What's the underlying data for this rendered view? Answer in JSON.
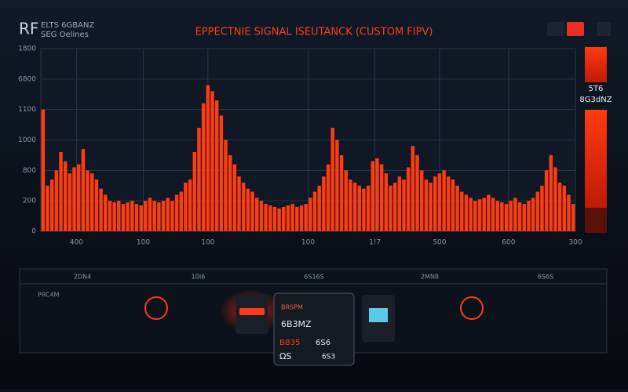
{
  "header": {
    "logo": "RF",
    "line1": "ELTS 6GBANZ",
    "line2": "SEG Oelines"
  },
  "sidebar": {
    "line1": "5T6",
    "line2": "8G3dNZ"
  },
  "panel": {
    "labels": [
      "2DN4",
      "10I6",
      "6S16S",
      "2MN8",
      "6S6S"
    ],
    "corner": "PRC4M",
    "readout": {
      "title": "BRSPM",
      "main": "6B3MZ",
      "left": "BB35",
      "mid": "6S6",
      "bottom": "ΩS",
      "bottom_right": "6S3"
    }
  },
  "chart_data": {
    "type": "bar",
    "title": "EPPECTNIE SIGNAL ISEUTANCK (CUSTOM FIPV)",
    "color": "#ff3b12",
    "grid": true,
    "values": [
      400,
      150,
      170,
      200,
      260,
      230,
      190,
      210,
      220,
      270,
      200,
      190,
      170,
      140,
      120,
      100,
      95,
      100,
      90,
      95,
      100,
      90,
      85,
      100,
      110,
      100,
      95,
      100,
      110,
      100,
      120,
      130,
      160,
      170,
      260,
      340,
      420,
      480,
      460,
      430,
      380,
      300,
      250,
      220,
      180,
      160,
      140,
      130,
      110,
      100,
      90,
      85,
      80,
      75,
      80,
      85,
      90,
      80,
      85,
      90,
      110,
      130,
      150,
      180,
      220,
      340,
      300,
      250,
      200,
      170,
      160,
      150,
      140,
      150,
      230,
      240,
      220,
      190,
      150,
      160,
      180,
      170,
      210,
      280,
      250,
      200,
      170,
      160,
      180,
      190,
      200,
      180,
      170,
      150,
      130,
      120,
      110,
      100,
      105,
      110,
      120,
      110,
      100,
      95,
      90,
      100,
      110,
      95,
      90,
      100,
      110,
      130,
      150,
      200,
      250,
      210,
      160,
      150,
      120,
      90
    ],
    "ylim": [
      0,
      600
    ],
    "yticks": [
      {
        "value": 600,
        "label": "1800"
      },
      {
        "value": 500,
        "label": "6800"
      },
      {
        "value": 400,
        "label": "1100"
      },
      {
        "value": 300,
        "label": "1000"
      },
      {
        "value": 200,
        "label": "800"
      },
      {
        "value": 100,
        "label": "200"
      },
      0
    ],
    "xlim": [
      0,
      120
    ],
    "xticks": [
      {
        "value": 8,
        "label": "400"
      },
      {
        "value": 23,
        "label": "100"
      },
      {
        "value": 37.5,
        "label": "100"
      },
      {
        "value": 60,
        "label": "100"
      },
      {
        "value": 75,
        "label": "1!7"
      },
      {
        "value": 89.5,
        "label": "500"
      },
      {
        "value": 105,
        "label": "600"
      },
      {
        "value": 120,
        "label": "300"
      }
    ]
  }
}
